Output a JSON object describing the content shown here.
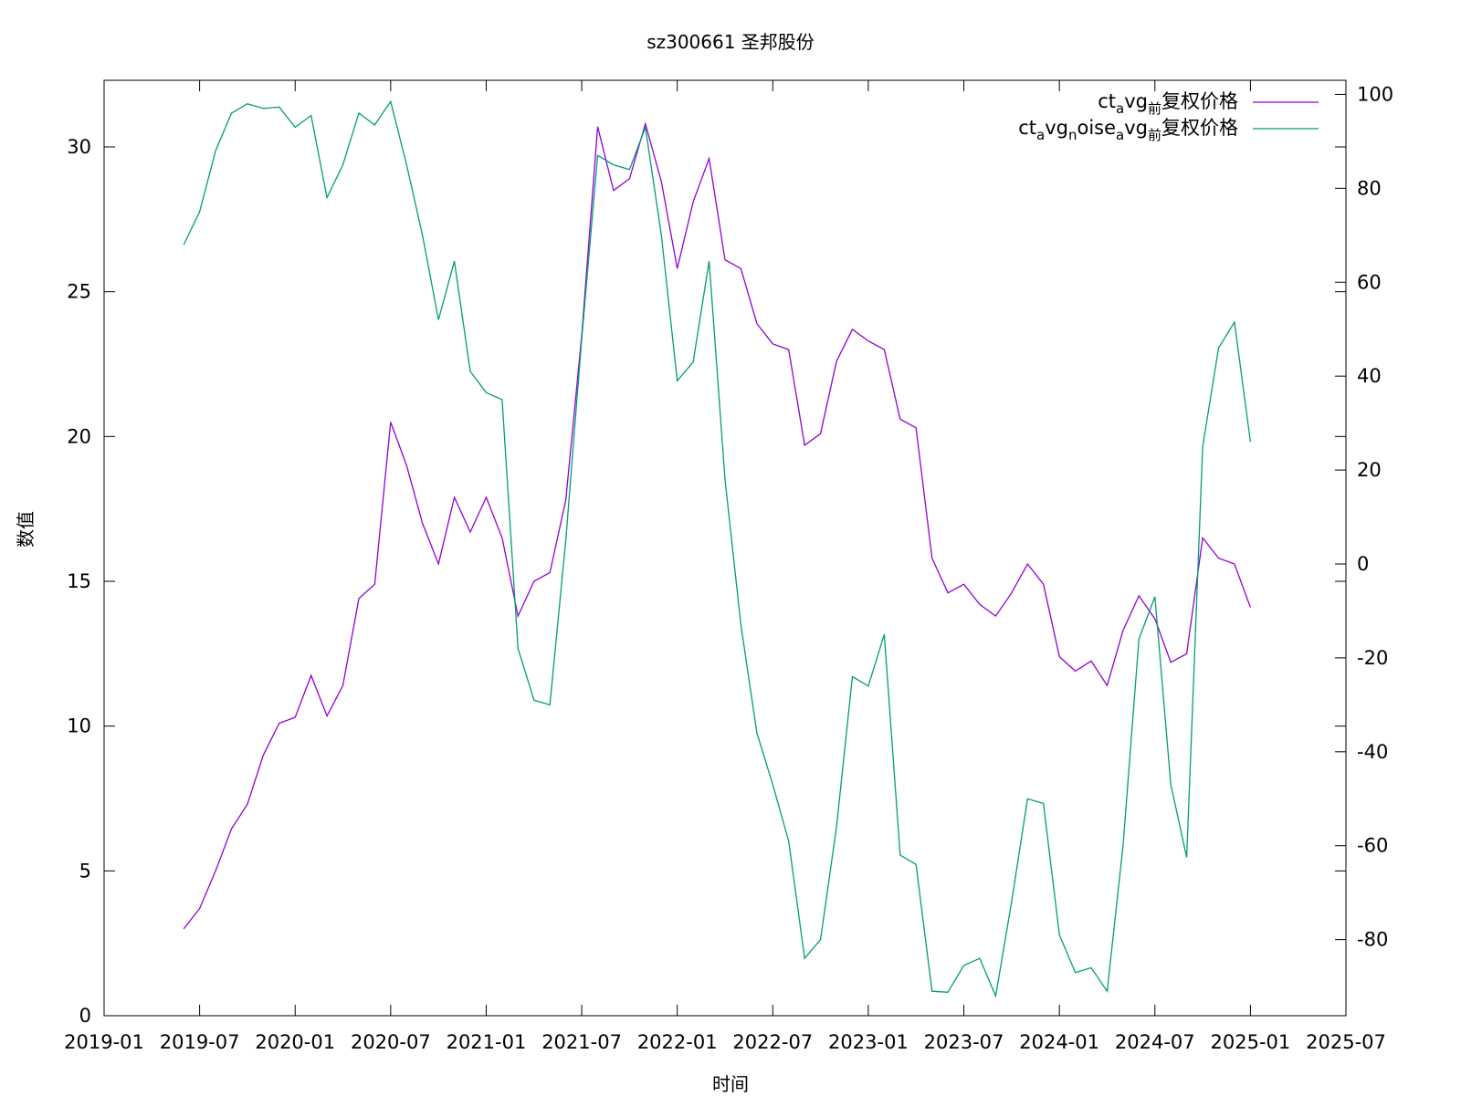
{
  "title": "sz300661 圣邦股份",
  "chart_data": {
    "type": "line",
    "title": "sz300661 圣邦股份",
    "xlabel": "时间",
    "ylabel": "数值",
    "x_ticks": [
      "2019-01",
      "2019-07",
      "2020-01",
      "2020-07",
      "2021-01",
      "2021-07",
      "2022-01",
      "2022-07",
      "2023-01",
      "2023-07",
      "2024-01",
      "2024-07",
      "2025-01",
      "2025-07"
    ],
    "x_range": [
      "2019-01",
      "2025-07"
    ],
    "y_left_ticks": [
      0,
      5,
      10,
      15,
      20,
      25,
      30
    ],
    "y_left_range": [
      0,
      32.3
    ],
    "y_right_ticks": [
      -80,
      -60,
      -40,
      -20,
      0,
      20,
      40,
      60,
      80,
      100
    ],
    "y_right_range": [
      -96.2,
      103
    ],
    "legend_position": "top-right",
    "grid": false,
    "x": [
      "2019-06",
      "2019-07",
      "2019-08",
      "2019-09",
      "2019-10",
      "2019-11",
      "2019-12",
      "2020-01",
      "2020-02",
      "2020-03",
      "2020-04",
      "2020-05",
      "2020-06",
      "2020-07",
      "2020-08",
      "2020-09",
      "2020-10",
      "2020-11",
      "2020-12",
      "2021-01",
      "2021-02",
      "2021-03",
      "2021-04",
      "2021-05",
      "2021-06",
      "2021-07",
      "2021-08",
      "2021-09",
      "2021-10",
      "2021-11",
      "2021-12",
      "2022-01",
      "2022-02",
      "2022-03",
      "2022-04",
      "2022-05",
      "2022-06",
      "2022-07",
      "2022-08",
      "2022-09",
      "2022-10",
      "2022-11",
      "2022-12",
      "2023-01",
      "2023-02",
      "2023-03",
      "2023-04",
      "2023-05",
      "2023-06",
      "2023-07",
      "2023-08",
      "2023-09",
      "2023-10",
      "2023-11",
      "2023-12",
      "2024-01",
      "2024-02",
      "2024-03",
      "2024-04",
      "2024-05",
      "2024-06",
      "2024-07",
      "2024-08",
      "2024-09",
      "2024-10",
      "2024-11",
      "2024-12",
      "2025-01"
    ],
    "series": [
      {
        "name": "ct_avg_前复权价格",
        "axis": "left",
        "color": "#9400d3",
        "values": [
          3.0,
          3.7,
          5.0,
          6.45,
          7.3,
          9.0,
          10.1,
          10.3,
          11.75,
          10.35,
          11.4,
          14.4,
          14.9,
          20.5,
          19.0,
          17.0,
          15.6,
          17.9,
          16.7,
          17.9,
          16.5,
          13.8,
          15.0,
          15.3,
          17.8,
          23.5,
          30.7,
          28.5,
          28.9,
          30.8,
          28.8,
          25.8,
          28.1,
          29.6,
          26.1,
          25.8,
          23.9,
          23.2,
          23.0,
          19.7,
          20.1,
          22.6,
          23.7,
          23.3,
          23.0,
          20.6,
          20.3,
          15.8,
          14.6,
          14.9,
          14.2,
          13.8,
          14.6,
          15.6,
          14.9,
          12.4,
          11.9,
          12.25,
          11.4,
          13.3,
          14.5,
          13.7,
          12.2,
          12.5,
          16.5,
          15.8,
          15.6,
          14.1
        ]
      },
      {
        "name": "ct_avg_noise_avg_前复权价格",
        "axis": "right",
        "color": "#009e73",
        "values": [
          68,
          75,
          88,
          96,
          98,
          97,
          97.3,
          93,
          95.5,
          78,
          85,
          96,
          93.5,
          98.5,
          85,
          70,
          52,
          64.5,
          41,
          36.5,
          35,
          -18,
          -29,
          -30,
          5,
          48,
          87,
          85,
          84,
          93,
          70,
          39,
          43,
          64.5,
          18,
          -13,
          -36,
          -47,
          -59,
          -84,
          -80,
          -56,
          -24,
          -26,
          -15,
          -62,
          -64,
          -91,
          -91.2,
          -85.5,
          -84,
          -92,
          -72,
          -50,
          -51,
          -79,
          -87,
          -86,
          -91,
          -60,
          -16,
          -7,
          -47,
          -62.5,
          25,
          46,
          51.5,
          26
        ]
      }
    ],
    "legend": [
      {
        "base": "ct",
        "sub": "a",
        "mid": "vg",
        "sub2": "前",
        "tail": "复权价格",
        "color": "#9400d3"
      },
      {
        "base": "ct",
        "sub": "a",
        "mid": "vg",
        "sub2": "n",
        "mid2": "oise",
        "sub3": "a",
        "mid3": "vg",
        "sub4": "前",
        "tail": "复权价格",
        "color": "#009e73"
      }
    ]
  }
}
